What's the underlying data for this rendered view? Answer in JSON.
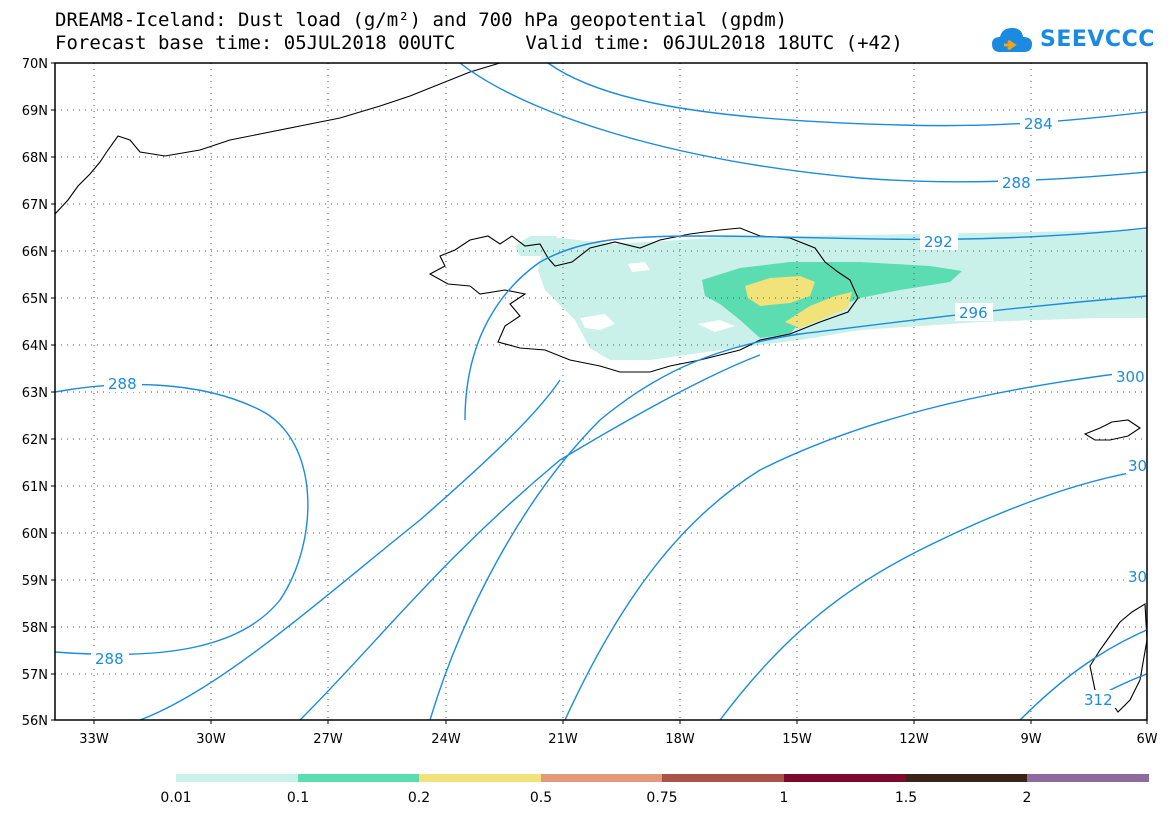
{
  "title": {
    "line1": "DREAM8-Iceland: Dust load (g/m²) and 700 hPa geopotential (gpdm)",
    "base_time": "Forecast base time: 05JUL2018 00UTC",
    "valid_time": "Valid time: 06JUL2018 18UTC (+42)"
  },
  "logo": {
    "text": "SEEVCCC",
    "icon": "cloud-logo-icon",
    "color": "#1a8be0"
  },
  "map": {
    "lon_range": [
      -34.5,
      -6
    ],
    "lat_range": [
      56,
      70
    ],
    "gridlines": "dotted",
    "lat_ticks": [
      "56N",
      "57N",
      "58N",
      "59N",
      "60N",
      "61N",
      "62N",
      "63N",
      "64N",
      "65N",
      "66N",
      "67N",
      "68N",
      "69N",
      "70N"
    ],
    "lon_ticks": [
      "33W",
      "30W",
      "27W",
      "24W",
      "21W",
      "18W",
      "15W",
      "12W",
      "9W",
      "6W"
    ],
    "contour_color": "#1a8be0",
    "contour_labels": [
      "284",
      "288",
      "292",
      "296",
      "300",
      "30",
      "30",
      "312",
      "288",
      "288"
    ]
  },
  "colorbar": {
    "colors": [
      "#c9f0e9",
      "#5cdcb1",
      "#f2e27a",
      "#e39a7b",
      "#a85248",
      "#7d0a2e",
      "#3a2318",
      "#8e6a9e"
    ],
    "labels": [
      "0.01",
      "0.1",
      "0.2",
      "0.5",
      "0.75",
      "1",
      "1.5",
      "2"
    ]
  }
}
